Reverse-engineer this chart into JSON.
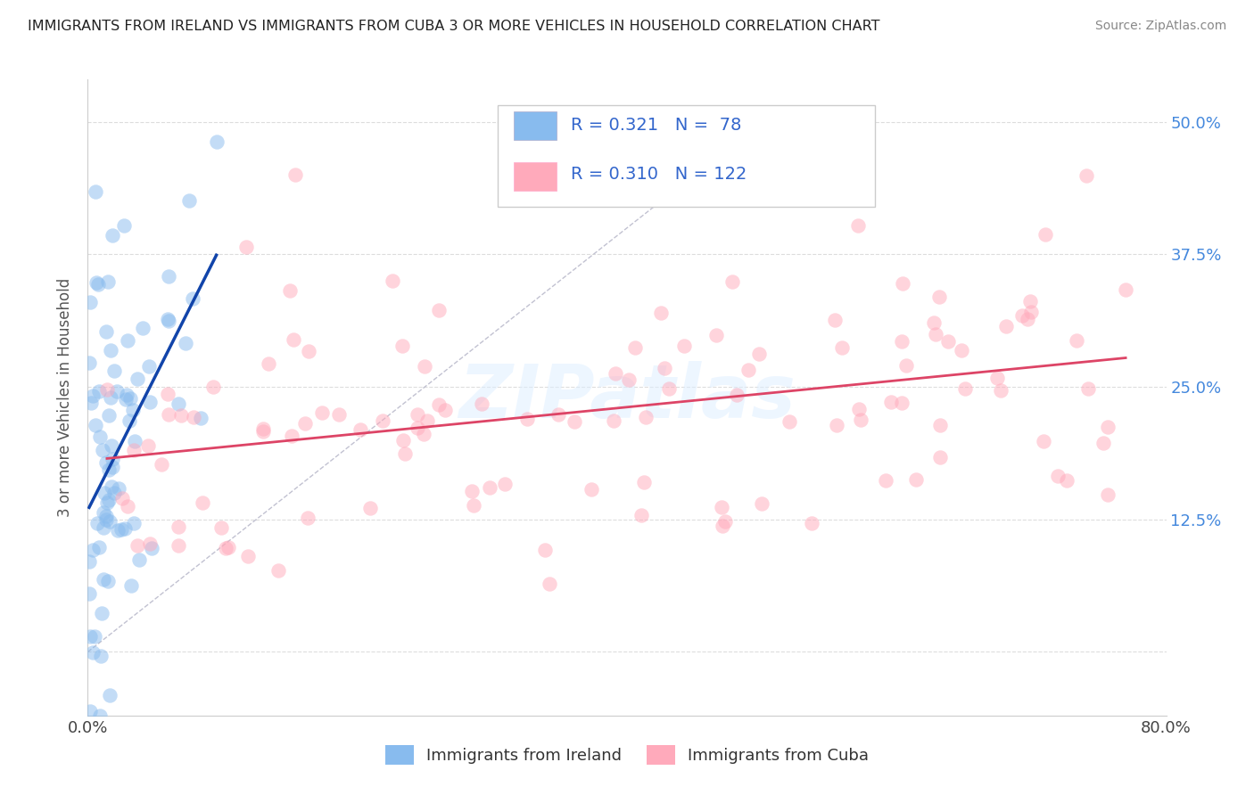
{
  "title": "IMMIGRANTS FROM IRELAND VS IMMIGRANTS FROM CUBA 3 OR MORE VEHICLES IN HOUSEHOLD CORRELATION CHART",
  "source": "Source: ZipAtlas.com",
  "ylabel": "3 or more Vehicles in Household",
  "xlim": [
    0.0,
    0.8
  ],
  "ylim": [
    -0.06,
    0.54
  ],
  "x_ticks": [
    0.0,
    0.2,
    0.4,
    0.6,
    0.8
  ],
  "x_tick_labels": [
    "0.0%",
    "",
    "",
    "",
    "80.0%"
  ],
  "y_ticks": [
    0.0,
    0.125,
    0.25,
    0.375,
    0.5
  ],
  "y_tick_labels": [
    "",
    "12.5%",
    "25.0%",
    "37.5%",
    "50.0%"
  ],
  "ireland_R": 0.321,
  "ireland_N": 78,
  "cuba_R": 0.31,
  "cuba_N": 122,
  "ireland_color": "#88BBEE",
  "ireland_line_color": "#1144AA",
  "cuba_color": "#FFAABB",
  "cuba_line_color": "#DD4466",
  "ref_line_color": "#BBBBCC",
  "watermark_color": "#DDEEFF",
  "background_color": "#FFFFFF",
  "grid_color": "#DDDDDD",
  "title_color": "#222222",
  "source_color": "#888888",
  "legend_text_color": "#3366CC",
  "tick_color_blue": "#4488DD",
  "tick_color_dark": "#444444"
}
